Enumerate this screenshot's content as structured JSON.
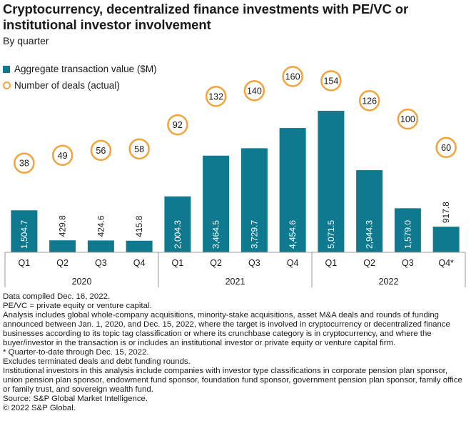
{
  "colors": {
    "bar": "#0f7a8f",
    "circle": "#f2a43a",
    "axis": "#999999"
  },
  "chart_data": {
    "type": "bar",
    "title": "Cryptocurrency, decentralized finance investments with PE/VC or institutional investor involvement",
    "subtitle": "By quarter",
    "legend": [
      "Aggregate transaction value ($M)",
      "Number of deals (actual)"
    ],
    "categories": [
      "Q1",
      "Q2",
      "Q3",
      "Q4",
      "Q1",
      "Q2",
      "Q3",
      "Q4",
      "Q1",
      "Q2",
      "Q3",
      "Q4*"
    ],
    "years": [
      {
        "label": "2020",
        "start": 0,
        "end": 3
      },
      {
        "label": "2021",
        "start": 4,
        "end": 7
      },
      {
        "label": "2022",
        "start": 8,
        "end": 11
      }
    ],
    "series": [
      {
        "name": "Aggregate transaction value ($M)",
        "values": [
          1504.7,
          429.8,
          424.6,
          415.8,
          2004.3,
          3464.5,
          3729.7,
          4454.6,
          5071.5,
          2944.3,
          1579.0,
          917.8
        ],
        "labels": [
          "1,504.7",
          "429.8",
          "424.6",
          "415.8",
          "2,004.3",
          "3,464.5",
          "3,729.7",
          "4,454.6",
          "5,071.5",
          "2,944.3",
          "1,579.0",
          "917.8"
        ]
      },
      {
        "name": "Number of deals (actual)",
        "values": [
          38,
          49,
          56,
          58,
          92,
          132,
          140,
          160,
          154,
          126,
          100,
          60
        ]
      }
    ],
    "ylim": [
      0,
      5200
    ],
    "deals_ylim": [
      0,
      160
    ]
  },
  "notes": [
    "Data compiled Dec. 16, 2022.",
    "PE/VC = private equity or venture capital.",
    "Analysis includes global whole-company acquisitions, minority-stake acquisitions, asset M&A deals and rounds of funding announced between Jan. 1, 2020, and Dec. 15, 2022, where the target is involved in cryptocurrency or decentralized finance businesses according to its topic tag classification or where its crunchbase category is in cryptocurrency, and where the buyer/investor in the transaction is or includes an institutional investor or private equity or venture capital firm.",
    "* Quarter-to-date through Dec. 15, 2022.",
    "Excludes terminated deals and debt funding rounds.",
    "Institutional investors in this analysis include companies with investor type classifications in corporate pension plan sponsor, union pension plan sponsor, endowment fund sponsor, foundation fund sponsor, government pension plan sponsor, family office or family trust, and sovereign wealth fund.",
    "Source: S&P Global Market Intelligence.",
    "© 2022 S&P Global."
  ]
}
